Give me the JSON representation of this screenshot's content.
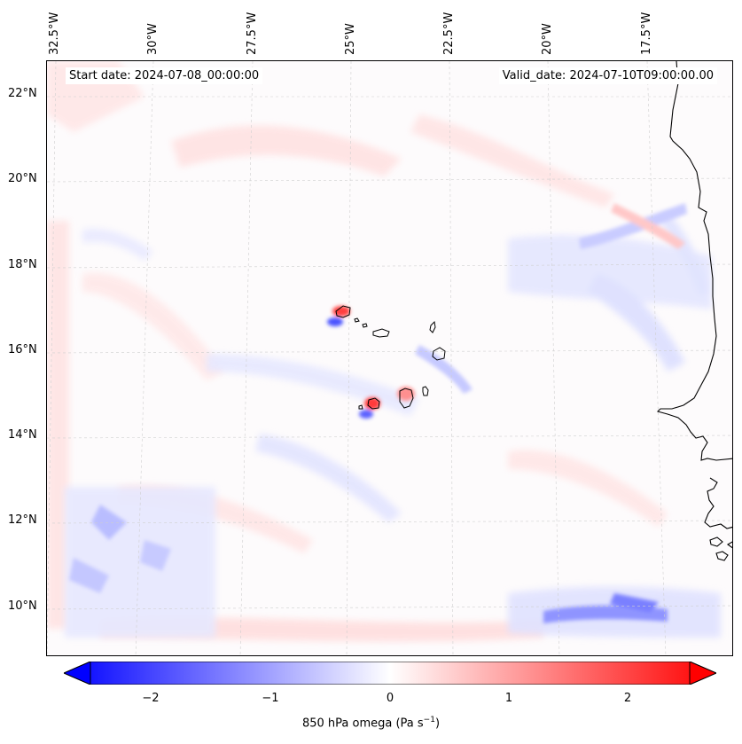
{
  "map": {
    "longitude_labels": [
      "32.5°W",
      "30°W",
      "27.5°W",
      "25°W",
      "22.5°W",
      "20°W",
      "17.5°W"
    ],
    "latitude_labels": [
      "22°N",
      "20°N",
      "18°N",
      "16°N",
      "14°N",
      "12°N",
      "10°N"
    ],
    "start_date": "Start date: 2024-07-08_00:00:00",
    "valid_date": "Valid_date: 2024-07-10T09:00:00.00"
  },
  "colorbar": {
    "ticks": [
      "−2",
      "−1",
      "0",
      "1",
      "2"
    ],
    "label_text": "850 hPa omega (Pa s",
    "label_exp": "−1",
    "label_close": ")",
    "min_value": -2.6,
    "max_value": 2.6,
    "low_color": "#0000ff",
    "mid_color": "#ffffff",
    "high_color": "#ff0000"
  },
  "style": {
    "positive_color": "#ff0000",
    "negative_color": "#0000ff",
    "coastline_color": "#000000"
  }
}
